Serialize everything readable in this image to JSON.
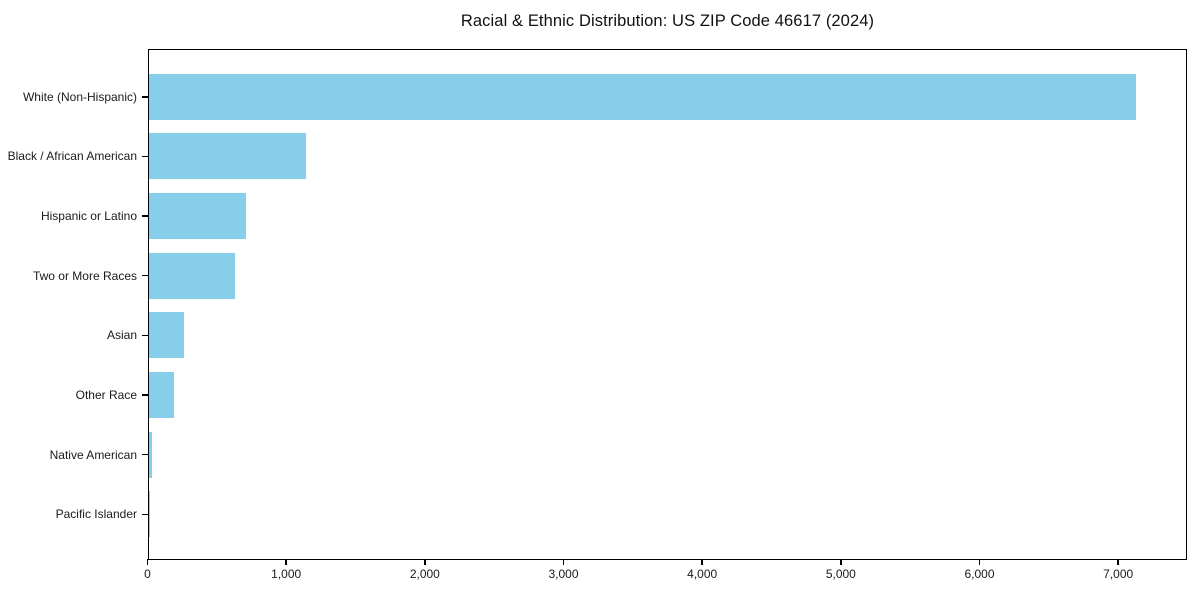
{
  "chart_data": {
    "type": "bar",
    "orientation": "horizontal",
    "title": "Racial & Ethnic Distribution: US ZIP Code 46617 (2024)",
    "xlabel": "",
    "ylabel": "",
    "categories": [
      "White (Non-Hispanic)",
      "Black / African American",
      "Hispanic or Latino",
      "Two or More Races",
      "Asian",
      "Other Race",
      "Native American",
      "Pacific Islander"
    ],
    "values": [
      7135,
      1135,
      705,
      620,
      255,
      180,
      20,
      5
    ],
    "xlim": [
      0,
      7500
    ],
    "xticks": [
      0,
      1000,
      2000,
      3000,
      4000,
      5000,
      6000,
      7000
    ],
    "xtick_labels": [
      "0",
      "1,000",
      "2,000",
      "3,000",
      "4,000",
      "5,000",
      "6,000",
      "7,000"
    ],
    "grid": false,
    "legend": "none",
    "bar_color": "#87CEEB",
    "spine_color": "#000000",
    "text_color": "#1a1a1a",
    "background_color": "#ffffff"
  }
}
